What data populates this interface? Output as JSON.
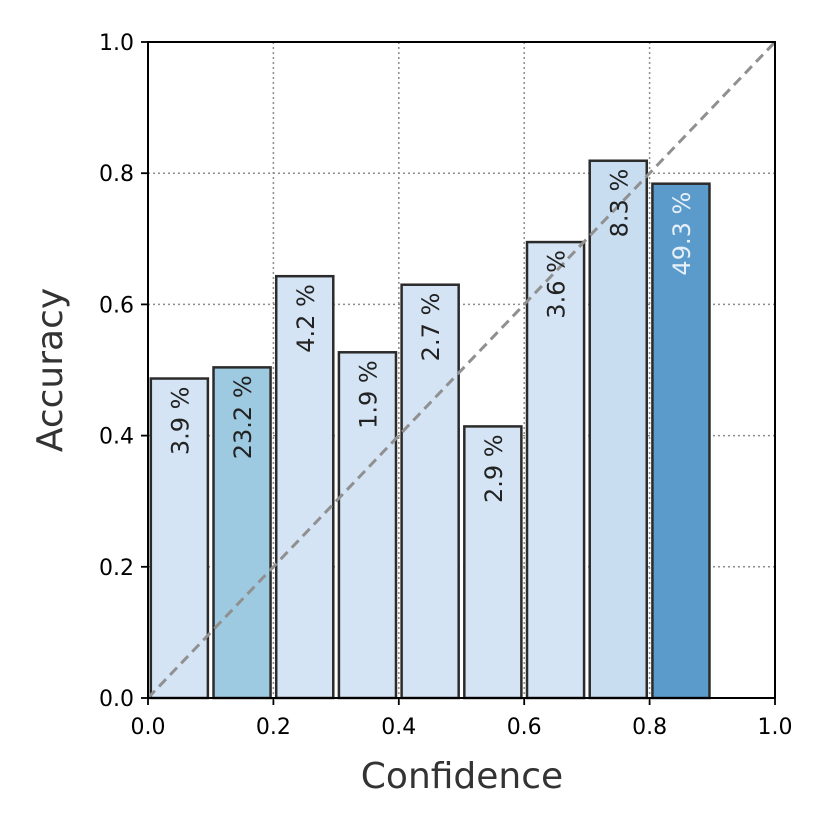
{
  "chart_data": {
    "type": "bar",
    "title": "",
    "xlabel": "Confidence",
    "ylabel": "Accuracy",
    "xlim": [
      0.0,
      1.0
    ],
    "ylim": [
      0.0,
      1.0
    ],
    "x_ticks": [
      "0.0",
      "0.2",
      "0.4",
      "0.6",
      "0.8",
      "1.0"
    ],
    "y_ticks": [
      "0.0",
      "0.2",
      "0.4",
      "0.6",
      "0.8",
      "1.0"
    ],
    "grid": true,
    "diagonal_reference": true,
    "bins": [
      {
        "start": 0.0,
        "end": 0.1,
        "accuracy": 0.487,
        "label": "3.9 %",
        "fill": "#d4e4f4",
        "label_color": "#222222"
      },
      {
        "start": 0.1,
        "end": 0.2,
        "accuracy": 0.504,
        "label": "23.2 %",
        "fill": "#9ecae1",
        "label_color": "#222222"
      },
      {
        "start": 0.2,
        "end": 0.3,
        "accuracy": 0.643,
        "label": "4.2 %",
        "fill": "#d4e4f4",
        "label_color": "#222222"
      },
      {
        "start": 0.3,
        "end": 0.4,
        "accuracy": 0.527,
        "label": "1.9 %",
        "fill": "#d4e4f4",
        "label_color": "#222222"
      },
      {
        "start": 0.4,
        "end": 0.5,
        "accuracy": 0.63,
        "label": "2.7 %",
        "fill": "#d4e4f4",
        "label_color": "#222222"
      },
      {
        "start": 0.5,
        "end": 0.6,
        "accuracy": 0.414,
        "label": "2.9 %",
        "fill": "#d4e4f4",
        "label_color": "#222222"
      },
      {
        "start": 0.6,
        "end": 0.7,
        "accuracy": 0.695,
        "label": "3.6 %",
        "fill": "#d4e4f4",
        "label_color": "#222222"
      },
      {
        "start": 0.7,
        "end": 0.8,
        "accuracy": 0.819,
        "label": "8.3 %",
        "fill": "#c9ddf0",
        "label_color": "#222222"
      },
      {
        "start": 0.8,
        "end": 0.9,
        "accuracy": 0.784,
        "label": "49.3 %",
        "fill": "#5a9bcc",
        "label_color": "#e6f0fa"
      }
    ],
    "colors": {
      "bar_edge": "#2b2b2b",
      "grid": "#8c8c8c",
      "diagonal": "#909090",
      "axis": "#000000"
    }
  }
}
